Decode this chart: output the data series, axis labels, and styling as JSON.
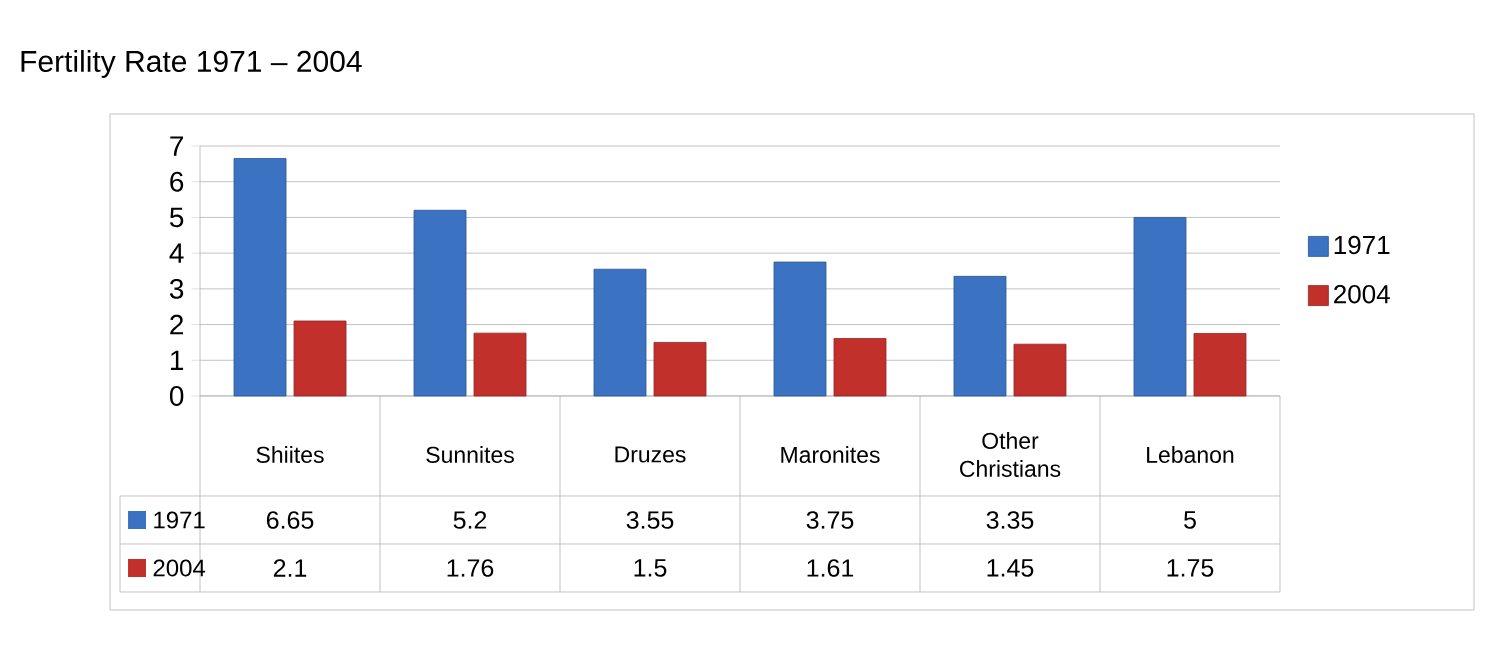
{
  "chart_data": {
    "type": "bar",
    "title": "Fertility Rate 1971 – 2004",
    "categories": [
      "Shiites",
      "Sunnites",
      "Druzes",
      "Maronites",
      "Other Christians",
      "Lebanon"
    ],
    "series": [
      {
        "name": "1971",
        "color": "#3b72c2",
        "values": [
          6.65,
          5.2,
          3.55,
          3.75,
          3.35,
          5
        ]
      },
      {
        "name": "2004",
        "color": "#c2302c",
        "values": [
          2.1,
          1.76,
          1.5,
          1.61,
          1.45,
          1.75
        ]
      }
    ],
    "ylim": [
      0,
      7
    ],
    "yticks": [
      0,
      1,
      2,
      3,
      4,
      5,
      6,
      7
    ],
    "grid": "y",
    "legend": "right",
    "data_labels": true
  }
}
